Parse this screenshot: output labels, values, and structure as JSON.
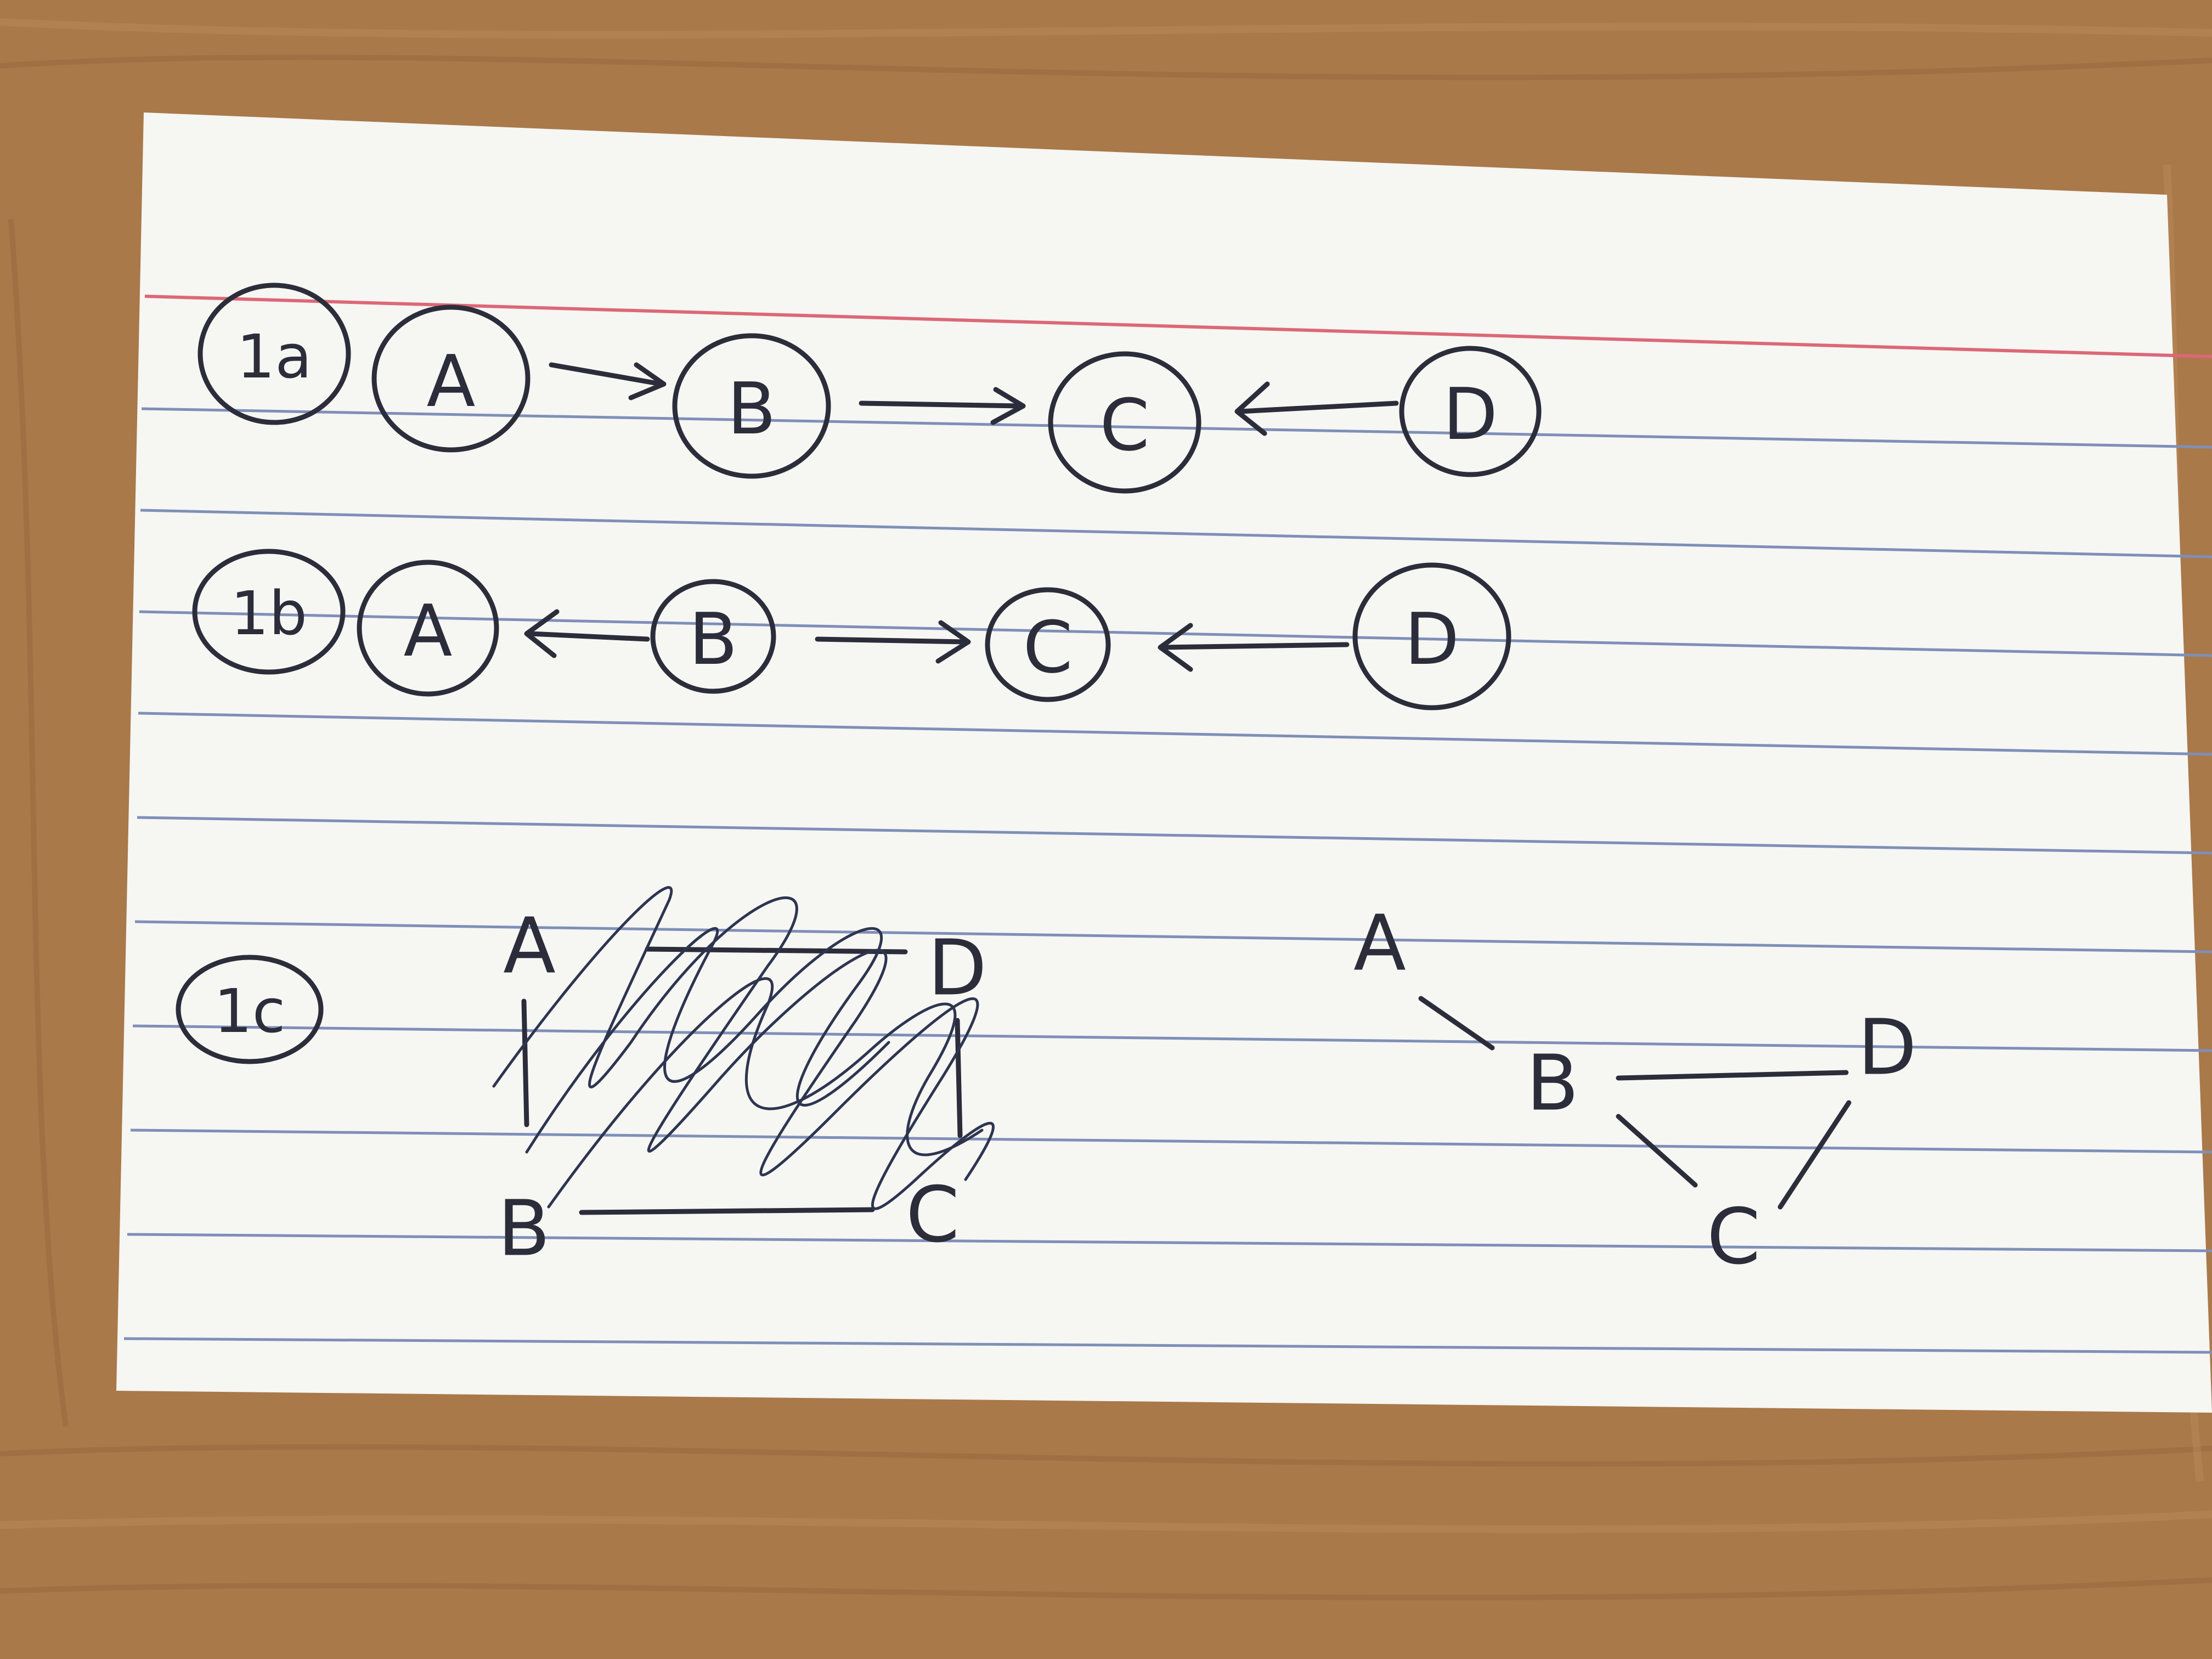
{
  "rows": [
    {
      "label": "1a",
      "nodes": [
        "A",
        "B",
        "C",
        "D"
      ],
      "edges": [
        {
          "from": "A",
          "to": "B",
          "arrow": "forward"
        },
        {
          "from": "B",
          "to": "C",
          "arrow": "forward"
        },
        {
          "from": "D",
          "to": "C",
          "arrow": "forward"
        }
      ]
    },
    {
      "label": "1b",
      "nodes": [
        "A",
        "B",
        "C",
        "D"
      ],
      "edges": [
        {
          "from": "B",
          "to": "A",
          "arrow": "forward"
        },
        {
          "from": "B",
          "to": "C",
          "arrow": "forward"
        },
        {
          "from": "D",
          "to": "C",
          "arrow": "forward"
        }
      ]
    },
    {
      "label": "1c",
      "crossed_out_graph": {
        "nodes": [
          "A",
          "D",
          "B",
          "C"
        ],
        "note": "scribbled out"
      },
      "graph": {
        "nodes": [
          "A",
          "B",
          "D",
          "C"
        ],
        "edges": [
          {
            "from": "A",
            "to": "B"
          },
          {
            "from": "B",
            "to": "D"
          },
          {
            "from": "B",
            "to": "C"
          },
          {
            "from": "C",
            "to": "D"
          }
        ]
      }
    }
  ],
  "colors": {
    "ink": "#2c2d3a",
    "card": "#f6f6f3",
    "desk": "#a9794a",
    "blue_rule": "#7f8fb8",
    "red_rule": "#dc6877"
  }
}
